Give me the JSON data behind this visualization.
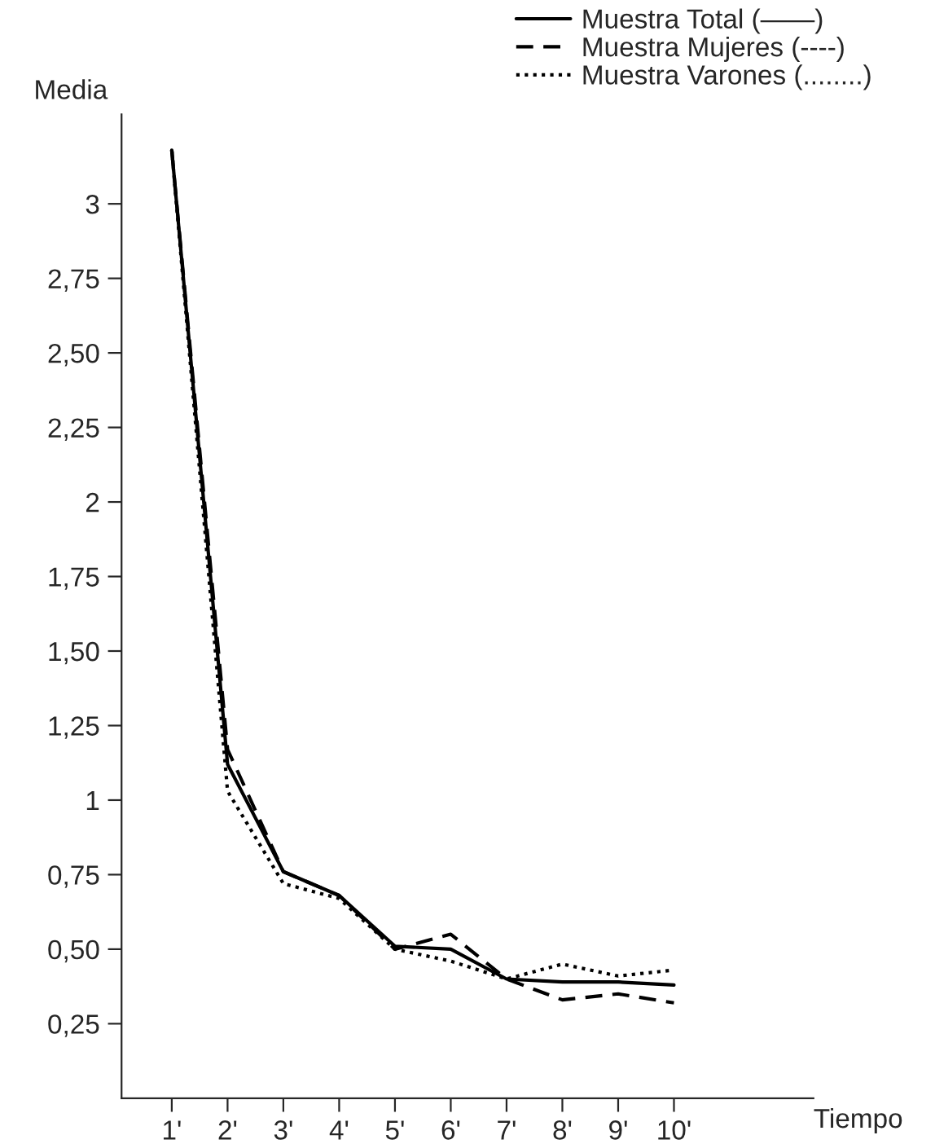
{
  "chart_data": {
    "type": "line",
    "xlabel": "Tiempo",
    "ylabel": "Media",
    "x": [
      1,
      2,
      3,
      4,
      5,
      6,
      7,
      8,
      9,
      10
    ],
    "series": [
      {
        "name": "Muestra Total (——)",
        "color": "#000000",
        "line_style": "solid",
        "values": [
          3.18,
          1.12,
          0.76,
          0.68,
          0.51,
          0.5,
          0.4,
          0.39,
          0.39,
          0.38
        ]
      },
      {
        "name": "Muestra Mujeres (----)",
        "color": "#000000",
        "line_style": "dashed",
        "values": [
          3.18,
          1.17,
          0.76,
          0.68,
          0.5,
          0.55,
          0.4,
          0.33,
          0.35,
          0.32
        ]
      },
      {
        "name": "Muestra Varones (........)",
        "color": "#000000",
        "line_style": "dotted",
        "values": [
          3.18,
          1.03,
          0.72,
          0.67,
          0.5,
          0.46,
          0.4,
          0.45,
          0.41,
          0.43
        ]
      }
    ],
    "xlim": [
      0.1,
      12.5
    ],
    "ylim": [
      0,
      3.3
    ],
    "xticks": [
      {
        "value": 1,
        "label": "1'"
      },
      {
        "value": 2,
        "label": "2'"
      },
      {
        "value": 3,
        "label": "3'"
      },
      {
        "value": 4,
        "label": "4'"
      },
      {
        "value": 5,
        "label": "5'"
      },
      {
        "value": 6,
        "label": "6'"
      },
      {
        "value": 7,
        "label": "7'"
      },
      {
        "value": 8,
        "label": "8'"
      },
      {
        "value": 9,
        "label": "9'"
      },
      {
        "value": 10,
        "label": "10'"
      }
    ],
    "yticks": [
      {
        "value": 0.25,
        "label": "0,25"
      },
      {
        "value": 0.5,
        "label": "0,50"
      },
      {
        "value": 0.75,
        "label": "0,75"
      },
      {
        "value": 1,
        "label": "1"
      },
      {
        "value": 1.25,
        "label": "1,25"
      },
      {
        "value": 1.5,
        "label": "1,50"
      },
      {
        "value": 1.75,
        "label": "1,75"
      },
      {
        "value": 2,
        "label": "2"
      },
      {
        "value": 2.25,
        "label": "2,25"
      },
      {
        "value": 2.5,
        "label": "2,50"
      },
      {
        "value": 2.75,
        "label": "2,75"
      },
      {
        "value": 3,
        "label": "3"
      }
    ],
    "grid": false,
    "legend": "top right",
    "marker": "none"
  }
}
